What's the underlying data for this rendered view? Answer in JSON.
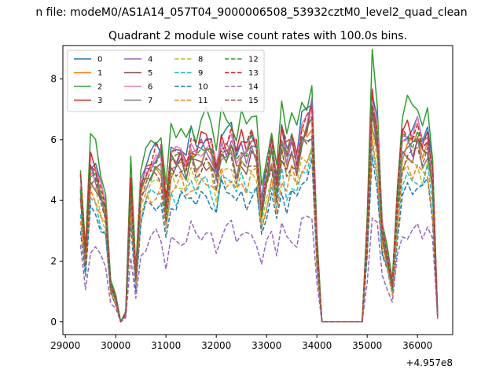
{
  "chart_data": {
    "type": "line",
    "suptitle": "n file: modeM0/AS1A14_057T04_9000006508_53932cztM0_level2_quad_clean",
    "title": "Quadrant 2 module wise count rates with 100.0s bins.",
    "xlabel": "",
    "ylabel": "",
    "x_offset_label": "+4.957e8",
    "xlim": [
      28950,
      36700
    ],
    "ylim": [
      -0.42,
      9.1
    ],
    "x_ticks": [
      29000,
      30000,
      31000,
      32000,
      33000,
      34000,
      35000,
      36000
    ],
    "x_tick_labels": [
      "29000",
      "30000",
      "31000",
      "32000",
      "33000",
      "34000",
      "35000",
      "36000"
    ],
    "y_ticks": [
      0,
      2,
      4,
      6,
      8
    ],
    "y_tick_labels": [
      "0",
      "2",
      "4",
      "6",
      "8"
    ],
    "grid": false,
    "legend": {
      "placement": "top-left",
      "columns": 4
    },
    "x": [
      29300,
      29400,
      29500,
      29600,
      29700,
      29800,
      29900,
      30000,
      30100,
      30200,
      30300,
      30400,
      30500,
      30600,
      30700,
      30800,
      30900,
      31000,
      31100,
      31200,
      31300,
      31400,
      31500,
      31600,
      31700,
      31800,
      31900,
      32000,
      32100,
      32200,
      32300,
      32400,
      32500,
      32600,
      32700,
      32800,
      32900,
      33000,
      33100,
      33200,
      33300,
      33400,
      33500,
      33600,
      33700,
      33800,
      33900,
      34000,
      34100,
      34200,
      34300,
      34400,
      34500,
      34600,
      34700,
      34800,
      34900,
      35000,
      35100,
      35200,
      35300,
      35400,
      35500,
      35600,
      35700,
      35800,
      35900,
      36000,
      36100,
      36200,
      36300,
      36400
    ],
    "base": [
      4.5,
      2.2,
      5.2,
      5.0,
      4.3,
      3.8,
      1.2,
      0.8,
      0.0,
      0.3,
      4.5,
      1.5,
      4.5,
      5.0,
      5.2,
      5.4,
      5.5,
      3.8,
      5.5,
      5.4,
      5.6,
      5.2,
      5.8,
      5.5,
      5.8,
      5.9,
      5.7,
      5.0,
      6.0,
      5.8,
      6.0,
      5.4,
      5.9,
      5.6,
      6.0,
      5.8,
      3.8,
      4.8,
      5.8,
      4.5,
      6.2,
      5.5,
      6.0,
      5.4,
      6.3,
      6.5,
      7.0,
      2.5,
      0.0,
      0.0,
      0.0,
      0.0,
      0.0,
      0.0,
      0.0,
      0.0,
      0.0,
      3.0,
      7.4,
      6.2,
      3.0,
      2.2,
      1.2,
      4.0,
      6.0,
      6.2,
      6.0,
      6.3,
      5.8,
      6.1,
      4.8,
      0.2
    ],
    "series": [
      {
        "name": "0",
        "color": "#1f77b4",
        "dash": "solid",
        "scale": 1.04,
        "phase": 0
      },
      {
        "name": "1",
        "color": "#ff7f0e",
        "dash": "solid",
        "scale": 0.95,
        "phase": 1
      },
      {
        "name": "2",
        "color": "#2ca02c",
        "dash": "solid",
        "scale": 1.14,
        "phase": 2
      },
      {
        "name": "3",
        "color": "#d62728",
        "dash": "solid",
        "scale": 1.01,
        "phase": 3
      },
      {
        "name": "4",
        "color": "#9467bd",
        "dash": "solid",
        "scale": 0.98,
        "phase": 4
      },
      {
        "name": "5",
        "color": "#8c564b",
        "dash": "solid",
        "scale": 0.92,
        "phase": 5
      },
      {
        "name": "6",
        "color": "#e377c2",
        "dash": "solid",
        "scale": 1.0,
        "phase": 6
      },
      {
        "name": "7",
        "color": "#7f7f7f",
        "dash": "solid",
        "scale": 0.93,
        "phase": 7
      },
      {
        "name": "8",
        "color": "#bcbd22",
        "dash": "dashed",
        "scale": 0.85,
        "phase": 8
      },
      {
        "name": "9",
        "color": "#17becf",
        "dash": "dashed",
        "scale": 0.78,
        "phase": 9
      },
      {
        "name": "10",
        "color": "#1f77b4",
        "dash": "dashed",
        "scale": 0.72,
        "phase": 10
      },
      {
        "name": "11",
        "color": "#ff7f0e",
        "dash": "dashed",
        "scale": 0.8,
        "phase": 11
      },
      {
        "name": "12",
        "color": "#2ca02c",
        "dash": "dashed",
        "scale": 0.97,
        "phase": 12
      },
      {
        "name": "13",
        "color": "#d62728",
        "dash": "dashed",
        "scale": 1.02,
        "phase": 13
      },
      {
        "name": "14",
        "color": "#9467bd",
        "dash": "dashed",
        "scale": 0.5,
        "phase": 14
      },
      {
        "name": "15",
        "color": "#8c564b",
        "dash": "dashed",
        "scale": 0.9,
        "phase": 15
      }
    ]
  }
}
